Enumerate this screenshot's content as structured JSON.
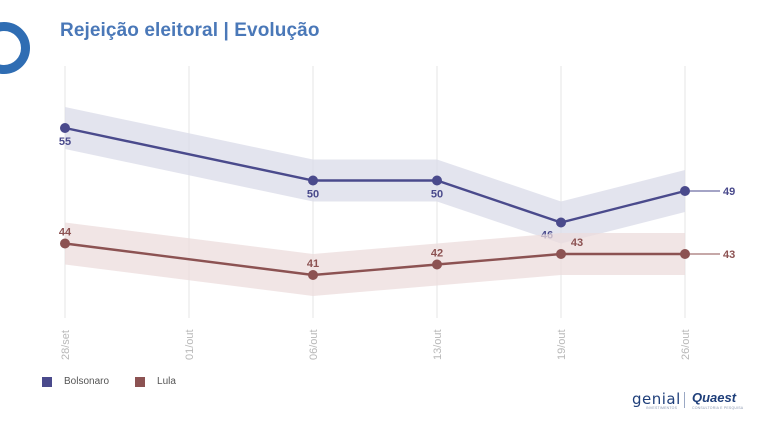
{
  "header": {
    "title": "Rejeição eleitoral | Evolução"
  },
  "chart_data": {
    "type": "line",
    "title": "Rejeição eleitoral | Evolução",
    "xlabel": "",
    "ylabel": "",
    "x": [
      "28/set",
      "01/out",
      "06/out",
      "13/out",
      "19/out",
      "26/out"
    ],
    "ylim": [
      20,
      70
    ],
    "grid": "vertical",
    "legend_position": "bottom-left",
    "series": [
      {
        "name": "Bolsonaro",
        "color": "#4a4a8c",
        "band_color": "#d9dbe8",
        "points": [
          {
            "x": "28/set",
            "y": 55,
            "label": "55"
          },
          {
            "x": "06/out",
            "y": 50,
            "label": "50"
          },
          {
            "x": "13/out",
            "y": 50,
            "label": "50"
          },
          {
            "x": "19/out",
            "y": 46,
            "label": "46"
          },
          {
            "x": "26/out",
            "y": 49,
            "label": "49"
          }
        ]
      },
      {
        "name": "Lula",
        "color": "#8c5252",
        "band_color": "#ecdcdc",
        "points": [
          {
            "x": "28/set",
            "y": 44,
            "label": "44"
          },
          {
            "x": "06/out",
            "y": 41,
            "label": "41"
          },
          {
            "x": "13/out",
            "y": 42,
            "label": "42"
          },
          {
            "x": "19/out",
            "y": 43,
            "label": "43"
          },
          {
            "x": "26/out",
            "y": 43,
            "label": "43"
          }
        ]
      }
    ]
  },
  "footer": {
    "brand_genial": "genial",
    "brand_genial_sub": "INVESTIMENTOS",
    "brand_quaest": "Quaest",
    "brand_quaest_sub": "CONSULTORIA E PESQUISA"
  }
}
